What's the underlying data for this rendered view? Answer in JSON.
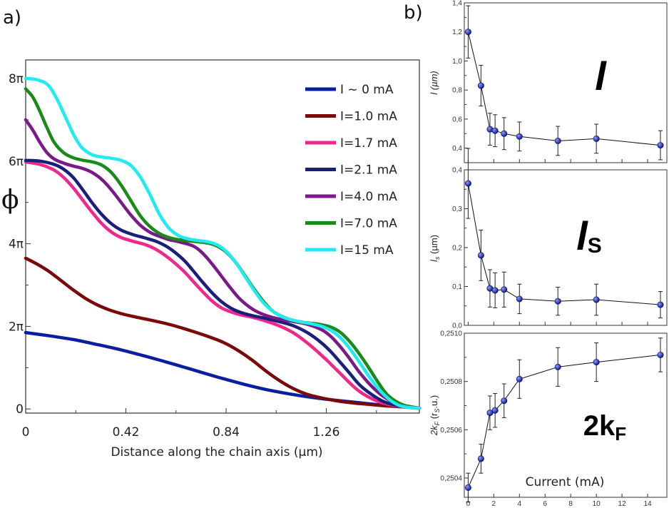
{
  "chart_data": [
    {
      "id": "a",
      "type": "line",
      "panel_label": "a)",
      "xlabel": "Distance along the chain axis (µm)",
      "ylabel": "ϕ",
      "xlim": [
        0,
        1.65
      ],
      "ylim": [
        -0.1,
        8.45
      ],
      "xticks": [
        {
          "v": 0,
          "label": "0"
        },
        {
          "v": 0.42,
          "label": "0.42"
        },
        {
          "v": 0.84,
          "label": "0.84"
        },
        {
          "v": 1.26,
          "label": "1.26"
        }
      ],
      "yticks": [
        {
          "v": 0,
          "label": "0"
        },
        {
          "v": 2,
          "label": "2π"
        },
        {
          "v": 4,
          "label": "4π"
        },
        {
          "v": 6,
          "label": "6π"
        },
        {
          "v": 8,
          "label": "8π"
        }
      ],
      "series": [
        {
          "name": "I ~ 0  mA",
          "color": "#0a1fa0",
          "x": [
            0,
            0.1,
            0.2,
            0.3,
            0.4,
            0.5,
            0.6,
            0.7,
            0.8,
            0.9,
            1.0,
            1.1,
            1.2,
            1.3,
            1.4,
            1.5,
            1.65
          ],
          "y": [
            1.85,
            1.77,
            1.68,
            1.56,
            1.43,
            1.28,
            1.12,
            0.95,
            0.78,
            0.62,
            0.48,
            0.37,
            0.28,
            0.21,
            0.15,
            0.09,
            0.02
          ]
        },
        {
          "name": "I=1.0 mA",
          "color": "#7a0a0a",
          "x": [
            0,
            0.05,
            0.1,
            0.15,
            0.2,
            0.25,
            0.3,
            0.35,
            0.4,
            0.45,
            0.5,
            0.6,
            0.7,
            0.8,
            0.85,
            0.9,
            0.95,
            1.0,
            1.05,
            1.1,
            1.15,
            1.2,
            1.3,
            1.4,
            1.5,
            1.58,
            1.65
          ],
          "y": [
            3.65,
            3.5,
            3.32,
            3.1,
            2.88,
            2.68,
            2.52,
            2.4,
            2.31,
            2.24,
            2.18,
            2.05,
            1.88,
            1.68,
            1.55,
            1.38,
            1.18,
            0.95,
            0.74,
            0.56,
            0.42,
            0.32,
            0.2,
            0.13,
            0.08,
            0.05,
            0.02
          ]
        },
        {
          "name": "I=1.7 mA",
          "color": "#f0288c",
          "x": [
            0,
            0.06,
            0.12,
            0.16,
            0.2,
            0.24,
            0.28,
            0.32,
            0.36,
            0.4,
            0.45,
            0.5,
            0.55,
            0.6,
            0.66,
            0.7,
            0.74,
            0.78,
            0.82,
            0.86,
            0.9,
            0.95,
            1.0,
            1.06,
            1.12,
            1.18,
            1.24,
            1.28,
            1.32,
            1.36,
            1.4,
            1.45,
            1.5,
            1.56,
            1.65
          ],
          "y": [
            5.98,
            5.92,
            5.78,
            5.6,
            5.35,
            5.05,
            4.75,
            4.48,
            4.28,
            4.15,
            4.06,
            3.98,
            3.85,
            3.65,
            3.35,
            3.1,
            2.85,
            2.62,
            2.45,
            2.35,
            2.28,
            2.22,
            2.14,
            2.02,
            1.85,
            1.6,
            1.3,
            1.08,
            0.85,
            0.62,
            0.42,
            0.25,
            0.14,
            0.07,
            0.02
          ]
        },
        {
          "name": "I=2.1 mA",
          "color": "#1a1f7a",
          "x": [
            0,
            0.06,
            0.12,
            0.16,
            0.2,
            0.24,
            0.28,
            0.32,
            0.36,
            0.4,
            0.45,
            0.5,
            0.55,
            0.6,
            0.66,
            0.7,
            0.74,
            0.78,
            0.82,
            0.86,
            0.9,
            0.95,
            1.0,
            1.06,
            1.12,
            1.18,
            1.24,
            1.28,
            1.32,
            1.36,
            1.4,
            1.45,
            1.5,
            1.56,
            1.65
          ],
          "y": [
            6.02,
            6.0,
            5.92,
            5.8,
            5.6,
            5.3,
            4.98,
            4.7,
            4.48,
            4.33,
            4.22,
            4.14,
            4.05,
            3.9,
            3.62,
            3.36,
            3.08,
            2.82,
            2.6,
            2.44,
            2.34,
            2.26,
            2.2,
            2.12,
            2.02,
            1.85,
            1.6,
            1.38,
            1.12,
            0.85,
            0.58,
            0.35,
            0.18,
            0.08,
            0.02
          ]
        },
        {
          "name": "I=4.0 mA",
          "color": "#7a1a88",
          "x": [
            0,
            0.03,
            0.06,
            0.09,
            0.12,
            0.16,
            0.2,
            0.24,
            0.28,
            0.32,
            0.36,
            0.4,
            0.44,
            0.48,
            0.52,
            0.56,
            0.6,
            0.64,
            0.7,
            0.74,
            0.78,
            0.82,
            0.86,
            0.9,
            0.95,
            1.0,
            1.06,
            1.12,
            1.18,
            1.24,
            1.28,
            1.32,
            1.36,
            1.4,
            1.45,
            1.5,
            1.56,
            1.65
          ],
          "y": [
            7.0,
            6.75,
            6.45,
            6.2,
            6.05,
            5.95,
            5.88,
            5.82,
            5.72,
            5.55,
            5.3,
            5.0,
            4.7,
            4.45,
            4.28,
            4.18,
            4.1,
            4.05,
            3.95,
            3.78,
            3.52,
            3.22,
            2.92,
            2.65,
            2.42,
            2.28,
            2.18,
            2.12,
            2.05,
            1.92,
            1.75,
            1.5,
            1.2,
            0.88,
            0.55,
            0.3,
            0.12,
            0.02
          ]
        },
        {
          "name": "I=7.0 mA",
          "color": "#1a8a1a",
          "x": [
            0,
            0.03,
            0.06,
            0.09,
            0.12,
            0.16,
            0.2,
            0.24,
            0.28,
            0.32,
            0.36,
            0.4,
            0.44,
            0.48,
            0.52,
            0.56,
            0.6,
            0.64,
            0.7,
            0.76,
            0.8,
            0.84,
            0.88,
            0.92,
            0.96,
            1.0,
            1.04,
            1.1,
            1.16,
            1.22,
            1.28,
            1.32,
            1.36,
            1.4,
            1.44,
            1.48,
            1.52,
            1.58,
            1.65
          ],
          "y": [
            7.75,
            7.55,
            7.2,
            6.8,
            6.45,
            6.2,
            6.08,
            6.02,
            5.98,
            5.9,
            5.72,
            5.42,
            5.05,
            4.68,
            4.42,
            4.25,
            4.15,
            4.1,
            4.06,
            4.02,
            3.95,
            3.8,
            3.55,
            3.22,
            2.88,
            2.58,
            2.35,
            2.18,
            2.1,
            2.06,
            1.98,
            1.85,
            1.62,
            1.32,
            0.98,
            0.62,
            0.32,
            0.1,
            0.02
          ]
        },
        {
          "name": "I=15  mA",
          "color": "#22eaf0",
          "x": [
            0,
            0.04,
            0.08,
            0.1,
            0.12,
            0.14,
            0.16,
            0.18,
            0.2,
            0.22,
            0.24,
            0.28,
            0.32,
            0.36,
            0.4,
            0.44,
            0.48,
            0.52,
            0.56,
            0.6,
            0.64,
            0.68,
            0.72,
            0.76,
            0.8,
            0.84,
            0.88,
            0.92,
            0.96,
            1.0,
            1.04,
            1.08,
            1.12,
            1.16,
            1.2,
            1.24,
            1.28,
            1.32,
            1.36,
            1.4,
            1.44,
            1.48,
            1.52,
            1.56,
            1.6,
            1.65
          ],
          "y": [
            8.0,
            7.98,
            7.9,
            7.8,
            7.62,
            7.4,
            7.15,
            6.9,
            6.65,
            6.45,
            6.3,
            6.15,
            6.1,
            6.07,
            6.02,
            5.9,
            5.62,
            5.2,
            4.72,
            4.38,
            4.2,
            4.12,
            4.08,
            4.05,
            3.98,
            3.82,
            3.55,
            3.2,
            2.85,
            2.55,
            2.35,
            2.22,
            2.15,
            2.1,
            2.06,
            2.0,
            1.9,
            1.72,
            1.45,
            1.12,
            0.78,
            0.48,
            0.25,
            0.1,
            0.04,
            0.02
          ]
        }
      ]
    },
    {
      "id": "b1",
      "type": "scatter",
      "panel_label": "b)",
      "big_label": "l",
      "ylabel": "l (µm)",
      "ylim": [
        0.3,
        1.4
      ],
      "yticks": [
        "0,4",
        "0,6",
        "0,8",
        "1,0",
        "1,2",
        "1,4"
      ],
      "ytick_values": [
        0.4,
        0.6,
        0.8,
        1.0,
        1.2,
        1.4
      ],
      "x": [
        0,
        1,
        1.7,
        2.1,
        2.8,
        4,
        7,
        10,
        15
      ],
      "y": [
        1.2,
        0.83,
        0.53,
        0.52,
        0.5,
        0.48,
        0.45,
        0.465,
        0.42
      ],
      "err": [
        0.18,
        0.14,
        0.11,
        0.11,
        0.11,
        0.1,
        0.1,
        0.1,
        0.1
      ]
    },
    {
      "id": "b2",
      "type": "scatter",
      "big_label": "l",
      "big_sub": "S",
      "ylabel": "l",
      "ylabel_sub": "s",
      "ylabel_unit": " (µm)",
      "ylim": [
        0.0,
        0.4
      ],
      "yticks": [
        "0,0",
        "0,1",
        "0,2",
        "0,3",
        "0,4"
      ],
      "ytick_values": [
        0.0,
        0.1,
        0.2,
        0.3,
        0.4
      ],
      "x": [
        0,
        1,
        1.7,
        2.1,
        2.8,
        4,
        7,
        10,
        15
      ],
      "y": [
        0.365,
        0.18,
        0.095,
        0.09,
        0.092,
        0.068,
        0.062,
        0.066,
        0.053
      ],
      "err": [
        0.09,
        0.065,
        0.048,
        0.045,
        0.045,
        0.038,
        0.036,
        0.04,
        0.034
      ]
    },
    {
      "id": "b3",
      "type": "scatter",
      "big_label": "2k",
      "big_sub": "F",
      "ylabel": "2k",
      "ylabel_sub": "F",
      "ylabel_unit": " (r",
      "ylabel_sub2": "S",
      "ylabel_unit2": ".u.)",
      "xlabel": "Current (mA)",
      "xlim": [
        -0.3,
        15.5
      ],
      "xticks": [
        "0",
        "2",
        "4",
        "6",
        "8",
        "10",
        "12",
        "14"
      ],
      "xtick_values": [
        0,
        2,
        4,
        6,
        8,
        10,
        12,
        14
      ],
      "ylim": [
        0.25032,
        0.251
      ],
      "yticks": [
        "0,2504",
        "0,2506",
        "0,2508",
        "0,2510"
      ],
      "ytick_values": [
        0.2504,
        0.2506,
        0.2508,
        0.251
      ],
      "x": [
        0,
        1,
        1.7,
        2.1,
        2.8,
        4,
        7,
        10,
        15
      ],
      "y": [
        0.25036,
        0.25048,
        0.25067,
        0.25068,
        0.25072,
        0.25081,
        0.25086,
        0.25088,
        0.25091
      ],
      "err": [
        6e-05,
        6e-05,
        7e-05,
        7e-05,
        7e-05,
        8e-05,
        8e-05,
        8e-05,
        7e-05
      ]
    }
  ]
}
